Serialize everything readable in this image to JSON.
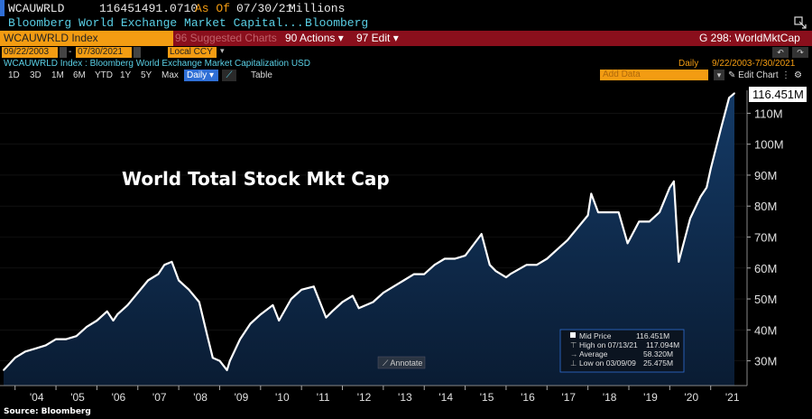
{
  "header": {
    "ticker": "WCAUWRLD",
    "value": "116451491.0710",
    "as_of_label": "As Of",
    "as_of_date": "07/30/21",
    "units": "Millions",
    "description": "Bloomberg World Exchange Market Capital...",
    "source_name": "Bloomberg"
  },
  "toolbar": {
    "security": "WCAUWRLD Index",
    "suggested": "96 Suggested Charts",
    "actions": "90 Actions",
    "edit": "97 Edit",
    "chart_id": "G 298: WorldMktCap"
  },
  "range": {
    "start": "09/22/2003",
    "end": "07/30/2021",
    "currency": "Local CCY"
  },
  "legend_line": {
    "security_desc": "WCAUWRLD Index : Bloomberg World Exchange Market Capitalization USD",
    "frequency": "Daily",
    "span": "9/22/2003-7/30/2021"
  },
  "periods": [
    "1D",
    "3D",
    "1M",
    "6M",
    "YTD",
    "1Y",
    "5Y",
    "Max"
  ],
  "frequency_select": "Daily",
  "table_label": "Table",
  "add_data_placeholder": "Add Data",
  "edit_chart_label": "Edit Chart",
  "annotate_label": "Annotate",
  "source_note": "Source: Bloomberg",
  "colors": {
    "accent_orange": "#f39c12",
    "toolbar_red": "#8a0f1c",
    "cyan_text": "#5ad0e6",
    "area_fill_top": "#143a66",
    "line": "#ffffff"
  },
  "chart_data": {
    "type": "area",
    "title": "World Total Stock Mkt Cap",
    "xlabel": "",
    "ylabel": "",
    "xlim": [
      2003.72,
      2021.58
    ],
    "ylim": [
      22,
      118
    ],
    "yticks": [
      30,
      40,
      50,
      60,
      70,
      80,
      90,
      100,
      110
    ],
    "ytick_labels": [
      "30M",
      "40M",
      "50M",
      "60M",
      "70M",
      "80M",
      "90M",
      "100M",
      "110M"
    ],
    "xticks": [
      2004,
      2005,
      2006,
      2007,
      2008,
      2009,
      2010,
      2011,
      2012,
      2013,
      2014,
      2015,
      2016,
      2017,
      2018,
      2019,
      2020,
      2021
    ],
    "xtick_labels": [
      "'04",
      "'05",
      "'06",
      "'07",
      "'08",
      "'09",
      "'10",
      "'11",
      "'12",
      "'13",
      "'14",
      "'15",
      "'16",
      "'17",
      "'18",
      "'19",
      "'20",
      "'21"
    ],
    "last_value_label": "116.451M",
    "x": [
      2003.72,
      2004.0,
      2004.25,
      2004.5,
      2004.75,
      2005.0,
      2005.25,
      2005.5,
      2005.75,
      2006.0,
      2006.25,
      2006.4,
      2006.5,
      2006.75,
      2007.0,
      2007.25,
      2007.5,
      2007.65,
      2007.83,
      2008.0,
      2008.25,
      2008.5,
      2008.7,
      2008.83,
      2009.0,
      2009.18,
      2009.25,
      2009.5,
      2009.75,
      2010.0,
      2010.3,
      2010.45,
      2010.75,
      2011.0,
      2011.3,
      2011.6,
      2011.75,
      2012.0,
      2012.25,
      2012.4,
      2012.75,
      2013.0,
      2013.25,
      2013.5,
      2013.75,
      2014.0,
      2014.25,
      2014.5,
      2014.75,
      2015.0,
      2015.4,
      2015.6,
      2015.75,
      2016.0,
      2016.1,
      2016.5,
      2016.75,
      2017.0,
      2017.25,
      2017.5,
      2017.75,
      2018.0,
      2018.08,
      2018.25,
      2018.5,
      2018.75,
      2018.97,
      2019.25,
      2019.5,
      2019.75,
      2020.0,
      2020.1,
      2020.22,
      2020.5,
      2020.75,
      2020.9,
      2021.0,
      2021.25,
      2021.45,
      2021.58
    ],
    "y": [
      27,
      31,
      33,
      34,
      35,
      37,
      37,
      38,
      41,
      43,
      46,
      43,
      45,
      48,
      52,
      56,
      58,
      61,
      62,
      56,
      53,
      49,
      38,
      31,
      30,
      27,
      30,
      37,
      42,
      45,
      48,
      43,
      50,
      53,
      54,
      44,
      46,
      49,
      51,
      47,
      49,
      52,
      54,
      56,
      58,
      58,
      61,
      63,
      63,
      64,
      71,
      61,
      59,
      57,
      58,
      61,
      61,
      63,
      66,
      69,
      73,
      77,
      84,
      78,
      78,
      78,
      68,
      75,
      75,
      78,
      86,
      88,
      62,
      76,
      83,
      86,
      92,
      105,
      115,
      116.45
    ]
  }
}
